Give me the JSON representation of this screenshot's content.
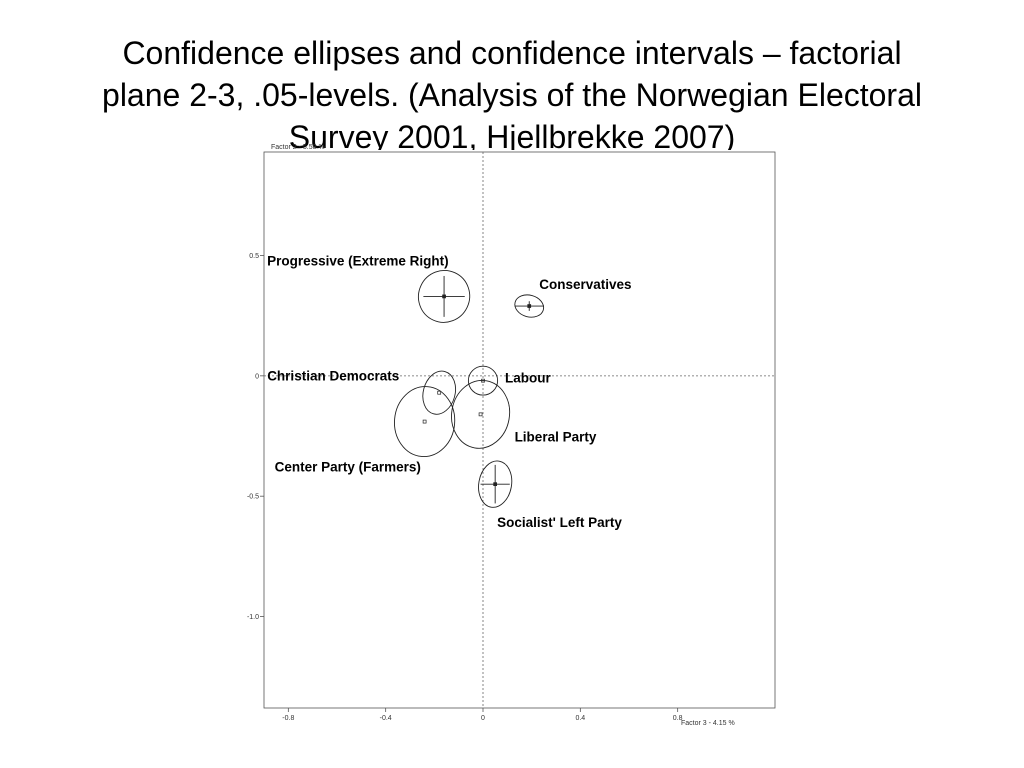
{
  "slide": {
    "title_lines": [
      "Confidence ellipses and confidence intervals – factorial",
      "plane 2-3, .05-levels. (Analysis of the Norwegian Electoral",
      "Survey 2001, Hjellbrekke 2007)"
    ]
  },
  "chart_data": {
    "type": "scatter",
    "title": "",
    "xlabel": "Factor 3  -  4.15 %",
    "ylabel": "Factor 2  -  5.58 %",
    "xlim": [
      -0.9,
      1.2
    ],
    "ylim": [
      -1.38,
      0.93
    ],
    "x_ticks": [
      -0.8,
      -0.4,
      0,
      0.4,
      0.8
    ],
    "x_tick_labels": [
      "-0.8",
      "-0.4",
      "0",
      "0.4",
      "0.8"
    ],
    "y_ticks": [
      0.5,
      0,
      -0.5,
      -1.0
    ],
    "y_tick_labels": [
      "0.5",
      "0",
      "-0.5",
      "-1.0"
    ],
    "grid": false,
    "reference_lines": [
      {
        "axis": "x",
        "value": 0
      },
      {
        "axis": "y",
        "value": 0
      }
    ],
    "points": [
      {
        "name": "Progressive (Extreme Right)",
        "x": -0.16,
        "y": 0.33,
        "ellipse": {
          "rx": 0.107,
          "ry": 0.106,
          "angle": 65
        },
        "ci": {
          "dx": 0.085,
          "dy": 0.085
        }
      },
      {
        "name": "Conservatives",
        "x": 0.19,
        "y": 0.29,
        "ellipse": {
          "rx": 0.06,
          "ry": 0.045,
          "angle": -15
        },
        "ci": {
          "dx": 0.06,
          "dy": 0.02
        }
      },
      {
        "name": "Christian Democrats",
        "x": -0.18,
        "y": -0.07,
        "ellipse": {
          "rx": 0.09,
          "ry": 0.066,
          "angle": 75
        },
        "ci": null
      },
      {
        "name": "Labour",
        "x": 0.0,
        "y": -0.02,
        "ellipse": {
          "rx": 0.06,
          "ry": 0.06,
          "angle": 0
        },
        "ci": null
      },
      {
        "name": "Liberal Party",
        "x": -0.01,
        "y": -0.16,
        "ellipse": {
          "rx": 0.14,
          "ry": 0.12,
          "angle": 80
        },
        "ci": null
      },
      {
        "name": "Center Party (Farmers)",
        "x": -0.24,
        "y": -0.19,
        "ellipse": {
          "rx": 0.144,
          "ry": 0.125,
          "angle": 85
        },
        "ci": null
      },
      {
        "name": "Socialist' Left Party",
        "x": 0.05,
        "y": -0.45,
        "ellipse": {
          "rx": 0.096,
          "ry": 0.068,
          "angle": 80
        },
        "ci": {
          "dx": 0.06,
          "dy": 0.08
        }
      }
    ]
  }
}
